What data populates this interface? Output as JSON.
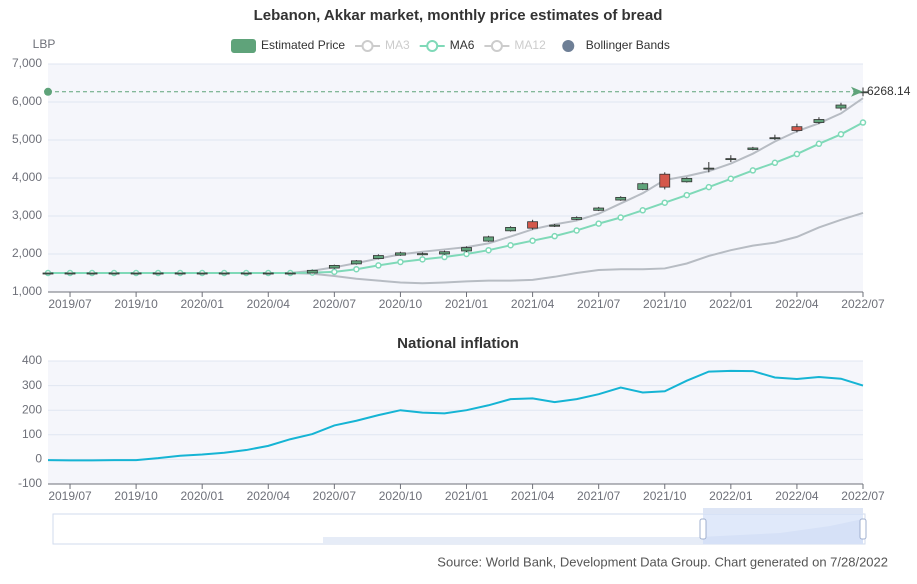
{
  "chart_data": [
    {
      "type": "candlestick",
      "title": "Lebanon, Akkar market, monthly price estimates of bread",
      "y_unit": "LBP",
      "legend": [
        {
          "name": "Estimated Price",
          "color": "#5fa37a",
          "active": true,
          "icon": "rect"
        },
        {
          "name": "MA3",
          "color": "#cccccc",
          "active": false,
          "icon": "line"
        },
        {
          "name": "MA6",
          "color": "#7fd9b8",
          "active": true,
          "icon": "line"
        },
        {
          "name": "MA12",
          "color": "#cccccc",
          "active": false,
          "icon": "line"
        },
        {
          "name": "Bollinger Bands",
          "color": "#6e7f96",
          "active": true,
          "icon": "dot"
        }
      ],
      "categories": [
        null,
        "2019/07",
        null,
        null,
        "2019/10",
        null,
        null,
        "2020/01",
        null,
        null,
        "2020/04",
        null,
        null,
        "2020/07",
        null,
        null,
        "2020/10",
        null,
        null,
        "2021/01",
        null,
        null,
        "2021/04",
        null,
        null,
        "2021/07",
        null,
        null,
        "2021/10",
        null,
        null,
        "2022/01",
        null,
        null,
        "2022/04",
        null,
        null,
        "2022/07"
      ],
      "open": [
        1500,
        1500,
        1500,
        1500,
        1500,
        1500,
        1500,
        1500,
        1500,
        1500,
        1500,
        1480,
        1500,
        1630,
        1740,
        1880,
        1970,
        1980,
        2000,
        2080,
        2340,
        2610,
        2850,
        2730,
        2910,
        3150,
        3420,
        3700,
        4100,
        3900,
        4250,
        4490,
        4750,
        5040,
        5350,
        5460,
        5840,
        6268.14
      ],
      "close": [
        1500,
        1500,
        1500,
        1500,
        1500,
        1500,
        1500,
        1500,
        1500,
        1500,
        1500,
        1500,
        1570,
        1700,
        1820,
        1960,
        2030,
        2010,
        2060,
        2170,
        2450,
        2700,
        2680,
        2760,
        2960,
        3210,
        3490,
        3850,
        3760,
        3990,
        4260,
        4510,
        4790,
        5060,
        5250,
        5540,
        5920,
        6268.14
      ],
      "low": [
        1500,
        1500,
        1500,
        1500,
        1500,
        1500,
        1500,
        1500,
        1500,
        1500,
        1500,
        1470,
        1490,
        1610,
        1720,
        1860,
        1950,
        1960,
        1980,
        2050,
        2320,
        2590,
        2640,
        2710,
        2890,
        3130,
        3400,
        3680,
        3700,
        3880,
        4150,
        4420,
        4730,
        5000,
        5200,
        5420,
        5780,
        6150
      ],
      "high": [
        1500,
        1500,
        1500,
        1500,
        1500,
        1500,
        1500,
        1500,
        1500,
        1500,
        1500,
        1510,
        1590,
        1720,
        1840,
        1990,
        2060,
        2040,
        2090,
        2200,
        2480,
        2730,
        2900,
        2790,
        2990,
        3240,
        3520,
        3880,
        4150,
        4020,
        4420,
        4600,
        4820,
        5140,
        5430,
        5600,
        5980,
        6380
      ],
      "up_color": "#5fa37a",
      "down_color": "#d4584c",
      "ma6": {
        "color": "#7fd9b8",
        "values": [
          1500,
          1500,
          1500,
          1500,
          1500,
          1500,
          1500,
          1500,
          1500,
          1500,
          1500,
          1500,
          1510,
          1530,
          1600,
          1700,
          1790,
          1860,
          1920,
          2000,
          2100,
          2230,
          2350,
          2470,
          2620,
          2800,
          2960,
          3150,
          3350,
          3550,
          3760,
          3980,
          4200,
          4400,
          4630,
          4900,
          5150,
          5460
        ]
      },
      "bollinger": {
        "color": "#b7bcc3",
        "upper": [
          1500,
          1500,
          1500,
          1500,
          1500,
          1500,
          1500,
          1500,
          1500,
          1500,
          1500,
          1500,
          1560,
          1650,
          1760,
          1880,
          1990,
          2060,
          2120,
          2180,
          2280,
          2460,
          2650,
          2780,
          2880,
          3060,
          3330,
          3600,
          3950,
          4050,
          4180,
          4380,
          4640,
          4960,
          5230,
          5440,
          5700,
          6100
        ],
        "lower": [
          1500,
          1500,
          1500,
          1500,
          1500,
          1500,
          1500,
          1500,
          1500,
          1500,
          1500,
          1500,
          1480,
          1420,
          1350,
          1300,
          1250,
          1230,
          1250,
          1280,
          1300,
          1300,
          1320,
          1400,
          1500,
          1580,
          1600,
          1600,
          1620,
          1750,
          1950,
          2100,
          2220,
          2300,
          2450,
          2700,
          2900,
          3080
        ]
      },
      "markline": {
        "value": 6268.14,
        "color": "#5fa37a"
      },
      "ylim": [
        1000,
        7000
      ],
      "yticks": [
        {
          "value": 1000,
          "label": "1,000"
        },
        {
          "value": 2000,
          "label": "2,000"
        },
        {
          "value": 3000,
          "label": "3,000"
        },
        {
          "value": 4000,
          "label": "4,000"
        },
        {
          "value": 5000,
          "label": "5,000"
        },
        {
          "value": 6000,
          "label": "6,000"
        },
        {
          "value": 7000,
          "label": "7,000"
        }
      ],
      "grid": true
    },
    {
      "type": "line",
      "title": "National inflation",
      "categories": [
        null,
        "2019/07",
        null,
        null,
        "2019/10",
        null,
        null,
        "2020/01",
        null,
        null,
        "2020/04",
        null,
        null,
        "2020/07",
        null,
        null,
        "2020/10",
        null,
        null,
        "2021/01",
        null,
        null,
        "2021/04",
        null,
        null,
        "2021/07",
        null,
        null,
        "2021/10",
        null,
        null,
        "2022/01",
        null,
        null,
        "2022/04",
        null,
        null,
        "2022/07"
      ],
      "values": [
        -3,
        -4,
        -4,
        -3,
        -3,
        5,
        15,
        20,
        27,
        38,
        55,
        82,
        103,
        138,
        157,
        180,
        200,
        190,
        187,
        200,
        220,
        245,
        248,
        233,
        245,
        265,
        292,
        272,
        277,
        320,
        357,
        360,
        359,
        333,
        327,
        335,
        328,
        300
      ],
      "color": "#15b4d4",
      "ylim": [
        -100,
        400
      ],
      "yticks": [
        -100,
        0,
        100,
        200,
        300,
        400
      ],
      "grid": true
    }
  ],
  "source": "Source: World Bank, Development Data Group. Chart generated on 7/28/2022"
}
